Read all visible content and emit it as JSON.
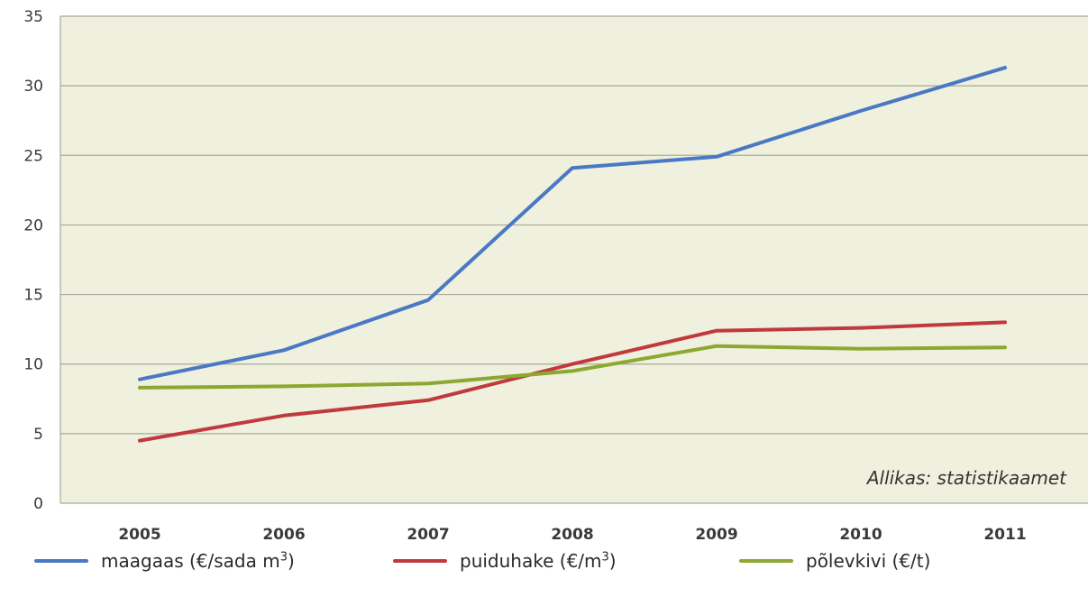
{
  "chart_data": {
    "type": "line",
    "title": "",
    "xlabel": "",
    "ylabel": "",
    "categories": [
      "2005",
      "2006",
      "2007",
      "2008",
      "2009",
      "2010",
      "2011"
    ],
    "ylim": [
      0,
      35
    ],
    "yticks": [
      "0",
      "5",
      "10",
      "15",
      "20",
      "25",
      "30",
      "35"
    ],
    "grid": true,
    "legend_position": "bottom",
    "annotation": "Allikas: statistikaamet",
    "series": [
      {
        "name": "maagaas (€/sada m³)",
        "color": "#4a78c4",
        "values": [
          8.9,
          11.0,
          14.6,
          24.1,
          24.9,
          28.2,
          31.3
        ]
      },
      {
        "name": "puiduhake (€/m³)",
        "color": "#c0393d",
        "values": [
          4.5,
          6.3,
          7.4,
          10.0,
          12.4,
          12.6,
          13.0
        ]
      },
      {
        "name": "põlevkivi (€/t)",
        "color": "#8ca830",
        "values": [
          8.3,
          8.4,
          8.6,
          9.5,
          11.3,
          11.1,
          11.2
        ]
      }
    ]
  },
  "legend": {
    "items": [
      {
        "text": "maagaas (€/sada m",
        "sup": "3",
        "close": ")"
      },
      {
        "text": "puiduhake (€/m",
        "sup": "3",
        "close": ")"
      },
      {
        "text": "põlevkivi (€/t)",
        "sup": "",
        "close": ""
      }
    ]
  }
}
